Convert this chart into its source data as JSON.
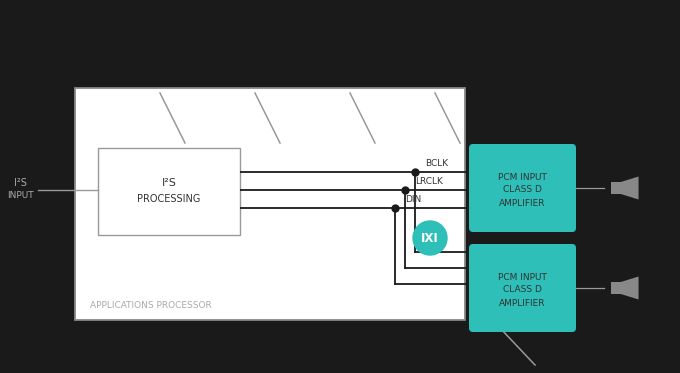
{
  "bg_color": "#1a1a1a",
  "white": "#ffffff",
  "teal": "#2dbfb8",
  "line_dark": "#1a1a1a",
  "line_gray": "#999999",
  "text_dark": "#333333",
  "text_light": "#aaaaaa",
  "text_gray": "#888888",
  "wire_labels": [
    "BCLK",
    "LRCLK",
    "DIN"
  ],
  "amp_label": "PCM INPUT\nCLASS D\nAMPLIFIER",
  "app_label": "APPLICATIONS PROCESSOR",
  "i2s_top": "I²S",
  "i2s_bot": "PROCESSING",
  "input_top": "I²S",
  "input_bot": "INPUT",
  "ixl_text": "IXI"
}
